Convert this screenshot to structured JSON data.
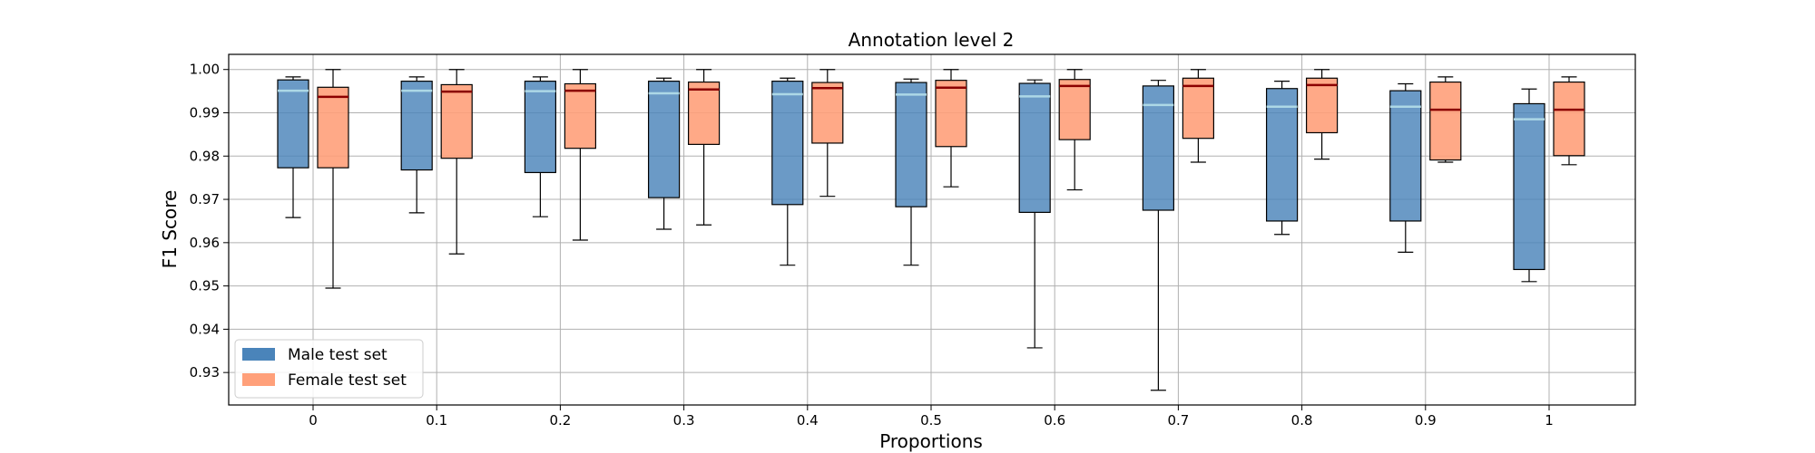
{
  "chart_data": {
    "type": "box",
    "title": "Annotation level 2",
    "xlabel": "Proportions",
    "ylabel": "F1 Score",
    "categories": [
      "0",
      "0.1",
      "0.2",
      "0.3",
      "0.4",
      "0.5",
      "0.6",
      "0.7",
      "0.8",
      "0.9",
      "1"
    ],
    "ylim": [
      0.9225,
      1.0035
    ],
    "yticks": [
      "0.93",
      "0.94",
      "0.95",
      "0.96",
      "0.97",
      "0.98",
      "0.99",
      "1.00"
    ],
    "grid": true,
    "legend_position": "lower-left",
    "series": [
      {
        "name": "Male test set",
        "color": "#4a84ba",
        "median_color": "#add8e6",
        "boxes": [
          {
            "min": 0.9658,
            "q1": 0.9773,
            "median": 0.9951,
            "q3": 0.9976,
            "max": 0.9983
          },
          {
            "min": 0.9669,
            "q1": 0.9768,
            "median": 0.9951,
            "q3": 0.9973,
            "max": 0.9983
          },
          {
            "min": 0.966,
            "q1": 0.9762,
            "median": 0.995,
            "q3": 0.9973,
            "max": 0.9983
          },
          {
            "min": 0.9631,
            "q1": 0.9704,
            "median": 0.9945,
            "q3": 0.9973,
            "max": 0.998
          },
          {
            "min": 0.9548,
            "q1": 0.9688,
            "median": 0.9943,
            "q3": 0.9973,
            "max": 0.998
          },
          {
            "min": 0.9548,
            "q1": 0.9683,
            "median": 0.9942,
            "q3": 0.997,
            "max": 0.9978
          },
          {
            "min": 0.9357,
            "q1": 0.967,
            "median": 0.9938,
            "q3": 0.9968,
            "max": 0.9976
          },
          {
            "min": 0.9259,
            "q1": 0.9675,
            "median": 0.9918,
            "q3": 0.9962,
            "max": 0.9975
          },
          {
            "min": 0.9619,
            "q1": 0.965,
            "median": 0.9914,
            "q3": 0.9956,
            "max": 0.9973
          },
          {
            "min": 0.9578,
            "q1": 0.965,
            "median": 0.9914,
            "q3": 0.9951,
            "max": 0.9967
          },
          {
            "min": 0.951,
            "q1": 0.9538,
            "median": 0.9885,
            "q3": 0.9921,
            "max": 0.9955
          }
        ]
      },
      {
        "name": "Female test set",
        "color": "#ffa07a",
        "median_color": "#8b0000",
        "boxes": [
          {
            "min": 0.9495,
            "q1": 0.9773,
            "median": 0.9937,
            "q3": 0.9959,
            "max": 1.0
          },
          {
            "min": 0.9574,
            "q1": 0.9795,
            "median": 0.9949,
            "q3": 0.9965,
            "max": 1.0
          },
          {
            "min": 0.9606,
            "q1": 0.9818,
            "median": 0.9951,
            "q3": 0.9967,
            "max": 1.0
          },
          {
            "min": 0.9641,
            "q1": 0.9827,
            "median": 0.9954,
            "q3": 0.9971,
            "max": 1.0
          },
          {
            "min": 0.9707,
            "q1": 0.983,
            "median": 0.9957,
            "q3": 0.997,
            "max": 1.0
          },
          {
            "min": 0.9729,
            "q1": 0.9822,
            "median": 0.9958,
            "q3": 0.9975,
            "max": 1.0
          },
          {
            "min": 0.9722,
            "q1": 0.9838,
            "median": 0.9962,
            "q3": 0.9977,
            "max": 1.0
          },
          {
            "min": 0.9786,
            "q1": 0.9841,
            "median": 0.9962,
            "q3": 0.998,
            "max": 1.0
          },
          {
            "min": 0.9793,
            "q1": 0.9854,
            "median": 0.9964,
            "q3": 0.998,
            "max": 1.0
          },
          {
            "min": 0.9786,
            "q1": 0.9791,
            "median": 0.9907,
            "q3": 0.9971,
            "max": 0.9983
          },
          {
            "min": 0.978,
            "q1": 0.9801,
            "median": 0.9907,
            "q3": 0.9971,
            "max": 0.9983
          }
        ]
      }
    ]
  }
}
